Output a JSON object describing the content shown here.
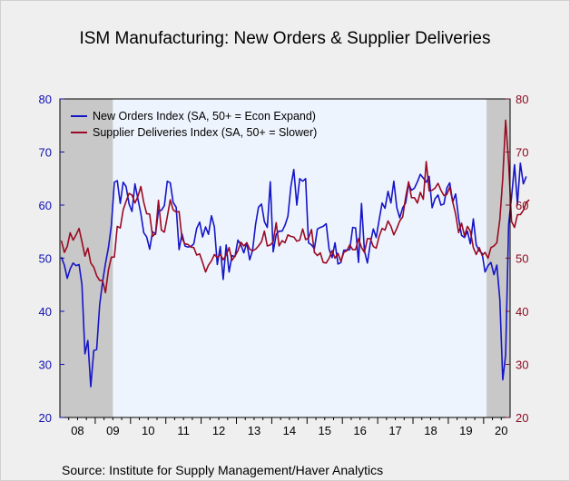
{
  "title": "ISM Manufacturing: New Orders & Supplier Deliveries",
  "source": "Source:   Institute for Supply Management/Haver Analytics",
  "colors": {
    "new_orders": "#1515c8",
    "supplier_deliveries": "#9b0a22",
    "left_axis": "#1010b0",
    "right_axis": "#8a0a1e",
    "recession_shade": "#c8c8c8",
    "plot_background": "#eef4fd"
  },
  "chart_data": {
    "type": "line",
    "title": "ISM Manufacturing: New Orders & Supplier Deliveries",
    "xlabel": "",
    "ylabel": "",
    "x_unit": "year-month",
    "xlim": [
      "2008-01",
      "2020-09"
    ],
    "ylim_left": [
      20,
      80
    ],
    "ylim_right": [
      20,
      80
    ],
    "yticks_left": [
      20,
      30,
      40,
      50,
      60,
      70,
      80
    ],
    "yticks_right": [
      20,
      30,
      40,
      50,
      60,
      70,
      80
    ],
    "xtick_labels": [
      "08",
      "09",
      "10",
      "11",
      "12",
      "13",
      "14",
      "15",
      "16",
      "17",
      "18",
      "19",
      "20"
    ],
    "grid": false,
    "legend_position": "top-left",
    "recession_shading": [
      {
        "start": "2008-01",
        "end": "2009-06"
      },
      {
        "start": "2020-02",
        "end": "2020-09"
      }
    ],
    "series": [
      {
        "name": "New Orders Index (SA, 50+ = Econ Expand)",
        "axis": "left",
        "start": "2008-01",
        "values": [
          50.2,
          48.7,
          46.2,
          48.0,
          49.1,
          48.6,
          48.8,
          45.0,
          32.0,
          34.5,
          25.8,
          32.6,
          32.8,
          41.2,
          45.5,
          49.0,
          52.0,
          56.2,
          64.3,
          64.6,
          60.3,
          64.3,
          63.5,
          60.2,
          58.8,
          64.0,
          61.2,
          58.4,
          54.8,
          54.0,
          51.7,
          55.0,
          54.5,
          59.0,
          59.0,
          59.9,
          64.5,
          64.2,
          60.5,
          59.6,
          51.6,
          54.6,
          52.3,
          52.1,
          52.2,
          52.7,
          55.6,
          56.8,
          54.0,
          55.9,
          54.5,
          58.0,
          55.9,
          48.8,
          52.2,
          46.0,
          52.5,
          47.4,
          50.5,
          50.3,
          53.4,
          52.5,
          51.0,
          52.9,
          49.7,
          51.5,
          56.4,
          59.6,
          60.2,
          56.9,
          55.8,
          64.4,
          51.2,
          54.5,
          55.1,
          55.1,
          56.2,
          57.9,
          63.5,
          66.7,
          60.0,
          65.0,
          64.5,
          65.0,
          52.9,
          52.5,
          51.8,
          55.5,
          55.8,
          56.0,
          56.5,
          51.7,
          50.1,
          52.9,
          48.9,
          49.2,
          51.5,
          51.5,
          51.6,
          55.8,
          55.7,
          49.2,
          60.3,
          51.4,
          49.1,
          52.8,
          55.5,
          53.9,
          57.2,
          60.4,
          59.4,
          62.6,
          60.4,
          64.5,
          59.5,
          57.6,
          59.5,
          60.4,
          64.0,
          62.8,
          63.2,
          64.4,
          65.8,
          65.1,
          64.3,
          65.4,
          59.5,
          61.2,
          61.9,
          60.0,
          60.2,
          63.2,
          64.2,
          60.6,
          62.1,
          57.5,
          54.3,
          53.9,
          55.1,
          52.7,
          57.4,
          52.5,
          51.4,
          50.9,
          47.4,
          48.6,
          49.2,
          46.9,
          48.7,
          42.2,
          27.1,
          31.8,
          56.4,
          61.5,
          67.6,
          60.2,
          67.9,
          64.0,
          65.4
        ]
      },
      {
        "name": "Supplier Deliveries Index (SA, 50+ = Slower)",
        "axis": "right",
        "start": "2008-01",
        "values": [
          53.3,
          51.1,
          52.2,
          54.8,
          53.4,
          54.4,
          55.6,
          53.1,
          50.4,
          51.9,
          49.1,
          48.3,
          46.7,
          45.8,
          45.8,
          43.5,
          47.8,
          50.2,
          50.2,
          56.0,
          55.7,
          59.1,
          60.7,
          62.2,
          61.9,
          60.4,
          61.6,
          63.5,
          60.5,
          58.4,
          58.3,
          54.1,
          54.7,
          60.9,
          55.3,
          54.9,
          57.8,
          61.0,
          59.1,
          58.7,
          58.8,
          53.7,
          52.7,
          52.6,
          52.1,
          52.0,
          50.6,
          50.8,
          49.2,
          47.4,
          48.7,
          49.5,
          50.7,
          50.1,
          50.7,
          49.7,
          50.6,
          52.0,
          49.6,
          50.4,
          51.4,
          53.0,
          52.3,
          52.9,
          51.7,
          51.4,
          51.7,
          52.3,
          53.1,
          55.1,
          52.3,
          52.5,
          53.1,
          56.7,
          52.3,
          53.3,
          52.9,
          54.4,
          54.1,
          54.0,
          53.2,
          53.4,
          55.5,
          53.5,
          53.8,
          55.4,
          51.1,
          50.5,
          51.0,
          49.2,
          49.1,
          50.0,
          51.4,
          50.0,
          50.9,
          49.4,
          51.1,
          51.4,
          52.5,
          51.6,
          51.6,
          53.7,
          52.0,
          51.1,
          53.7,
          53.7,
          52.2,
          51.9,
          54.1,
          55.6,
          55.3,
          57.0,
          56.0,
          54.4,
          55.6,
          57.0,
          57.8,
          61.4,
          64.4,
          61.4,
          61.4,
          60.4,
          62.4,
          61.1,
          68.2,
          62.7,
          62.8,
          63.2,
          64.1,
          62.8,
          61.8,
          62.0,
          63.4,
          60.6,
          58.3,
          54.8,
          56.6,
          54.2,
          56.0,
          55.1,
          52.0,
          50.7,
          52.0,
          50.5,
          51.1,
          50.0,
          52.0,
          52.3,
          52.9,
          57.3,
          65.0,
          76.0,
          68.0,
          56.9,
          55.8,
          58.2,
          58.2,
          59.0,
          60.5,
          61.0
        ]
      }
    ]
  }
}
